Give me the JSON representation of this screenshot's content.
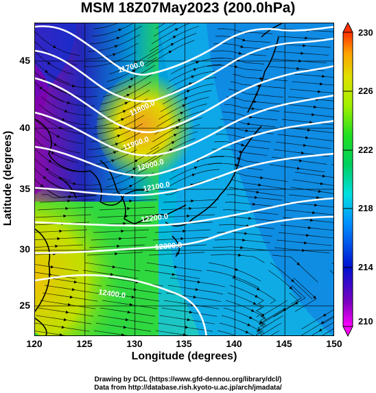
{
  "title": "MSM 18Z07May2023 (200.0hPa)",
  "x_axis": {
    "label": "Longitude (degrees)",
    "ticks": [
      "120",
      "125",
      "130",
      "135",
      "140",
      "145",
      "150"
    ]
  },
  "y_axis": {
    "label": "Latitude  (degrees)",
    "ticks": [
      "25",
      "30",
      "35",
      "40",
      "45"
    ]
  },
  "colorbar": {
    "ticks": [
      "230",
      "226",
      "222",
      "218",
      "214",
      "210"
    ],
    "colors": [
      "#ff00ff",
      "#8000c0",
      "#0010d0",
      "#0090ff",
      "#00e0e0",
      "#00d060",
      "#20e020",
      "#a0f000",
      "#e0e000",
      "#ffa000",
      "#ff3000"
    ]
  },
  "contour_labels": [
    "11700.0",
    "11800.0",
    "11900.0",
    "12000.0",
    "12100.0",
    "12200.0",
    "12300.0",
    "12400.0"
  ],
  "credits": [
    "Drawing by DCL (https://www.gfd-dennou.org/library/dcl/)",
    "Data from http://database.rish.kyoto-u.ac.jp/arch/jmadata/"
  ],
  "map_extent": {
    "lon": [
      120,
      150
    ],
    "lat": [
      22.5,
      48
    ]
  }
}
